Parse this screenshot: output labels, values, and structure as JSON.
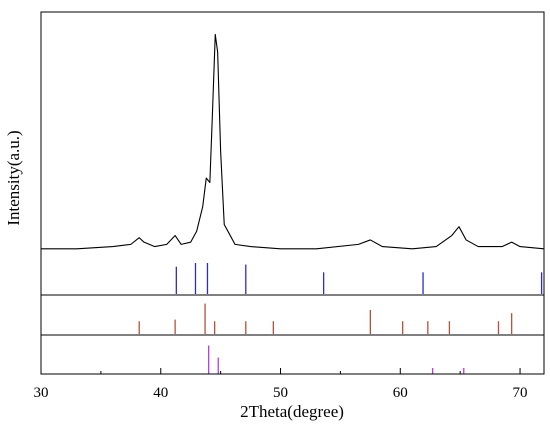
{
  "chart_data": {
    "type": "line",
    "title": "",
    "xlabel": "2Theta(degree)",
    "ylabel": "Intensity(a.u.)",
    "xlim": [
      30,
      72
    ],
    "x_ticks": [
      30,
      40,
      50,
      60,
      70
    ],
    "x_tick_labels": [
      "30",
      "40",
      "50",
      "60",
      "70"
    ],
    "y_ticks_shown": false,
    "grid": false,
    "legend": "none",
    "colors": {
      "pattern": "#000000",
      "ref1": "#2b2bd6",
      "ref2": "#b5513a",
      "ref3": "#b23cf0",
      "axes": "#000000"
    },
    "series": [
      {
        "type": "line",
        "points": [
          [
            30,
            0.01
          ],
          [
            33,
            0.01
          ],
          [
            36,
            0.02
          ],
          [
            37.5,
            0.03
          ],
          [
            38.2,
            0.06
          ],
          [
            38.6,
            0.04
          ],
          [
            39.5,
            0.02
          ],
          [
            40.5,
            0.03
          ],
          [
            41.2,
            0.07
          ],
          [
            41.7,
            0.03
          ],
          [
            42.5,
            0.04
          ],
          [
            43.0,
            0.09
          ],
          [
            43.5,
            0.2
          ],
          [
            43.8,
            0.33
          ],
          [
            44.1,
            0.31
          ],
          [
            44.3,
            0.6
          ],
          [
            44.55,
            0.98
          ],
          [
            44.75,
            0.9
          ],
          [
            45.0,
            0.45
          ],
          [
            45.3,
            0.12
          ],
          [
            45.7,
            0.08
          ],
          [
            46.2,
            0.03
          ],
          [
            47.5,
            0.02
          ],
          [
            50.0,
            0.01
          ],
          [
            53.0,
            0.01
          ],
          [
            56.5,
            0.03
          ],
          [
            57.5,
            0.05
          ],
          [
            58.5,
            0.02
          ],
          [
            61.0,
            0.01
          ],
          [
            63.0,
            0.02
          ],
          [
            64.3,
            0.07
          ],
          [
            64.9,
            0.11
          ],
          [
            65.5,
            0.05
          ],
          [
            66.5,
            0.02
          ],
          [
            68.5,
            0.02
          ],
          [
            69.3,
            0.04
          ],
          [
            70.0,
            0.02
          ],
          [
            72.0,
            0.01
          ]
        ]
      },
      {
        "type": "stick",
        "x": [
          41.3,
          42.9,
          43.9,
          47.1,
          53.6,
          61.9,
          71.8
        ],
        "heights": [
          0.88,
          1.0,
          1.0,
          0.95,
          0.7,
          0.7,
          0.7
        ]
      },
      {
        "type": "stick",
        "x": [
          38.2,
          41.2,
          43.7,
          44.5,
          47.1,
          49.4,
          57.5,
          60.2,
          62.3,
          64.1,
          68.2,
          69.3
        ],
        "heights": [
          0.4,
          0.45,
          0.95,
          0.4,
          0.4,
          0.4,
          0.75,
          0.4,
          0.4,
          0.4,
          0.4,
          0.65
        ]
      },
      {
        "type": "stick",
        "x": [
          44.0,
          44.8,
          62.7,
          65.3
        ],
        "heights": [
          0.95,
          0.55,
          0.2,
          0.2
        ]
      }
    ]
  }
}
